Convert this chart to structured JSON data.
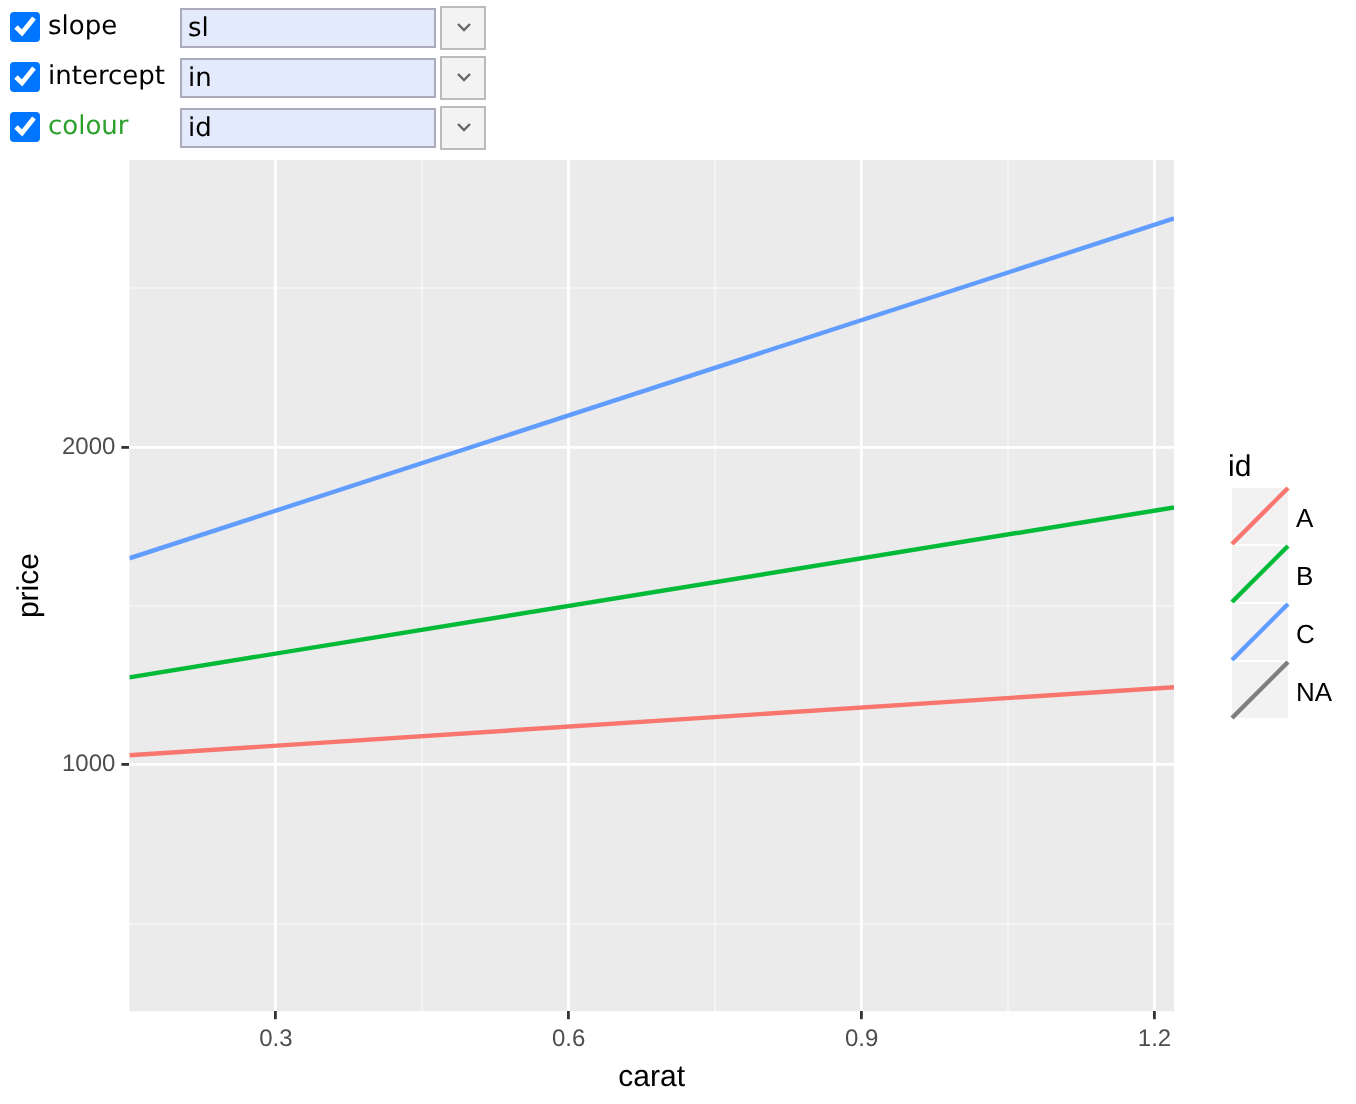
{
  "chart_data": {
    "type": "line",
    "xlabel": "carat",
    "ylabel": "price",
    "legend_title": "id",
    "legend": "right",
    "grid": true,
    "annotations": [
      "slope",
      "sl",
      "intercept",
      "in",
      "colour",
      "id"
    ],
    "x": [
      0.15,
      1.22
    ],
    "series": [
      {
        "name": "A",
        "color": "#f8766d",
        "values": [
          1030,
          1244
        ]
      },
      {
        "name": "B",
        "color": "#00ba38",
        "values": [
          1275,
          1810
        ]
      },
      {
        "name": "C",
        "color": "#619cff",
        "values": [
          1650,
          2720
        ]
      },
      {
        "name": "NA",
        "color": "#7f7f7f",
        "values": [
          null,
          null
        ]
      }
    ],
    "xlim": [
      0.15,
      1.22
    ],
    "xticks": [
      0.3,
      {
        "value": 0.45,
        "label": null
      },
      0.6,
      {
        "value": 0.75,
        "label": null
      },
      0.9,
      {
        "value": 1.05,
        "label": null
      },
      1.2
    ],
    "ylim": [
      224,
      2904
    ],
    "yticks": [
      {
        "value": 500,
        "label": null
      },
      1000,
      {
        "value": 1500,
        "label": null
      },
      2000,
      {
        "value": 2500,
        "label": null
      }
    ],
    "marker": "none",
    "line_style": "solid"
  }
}
